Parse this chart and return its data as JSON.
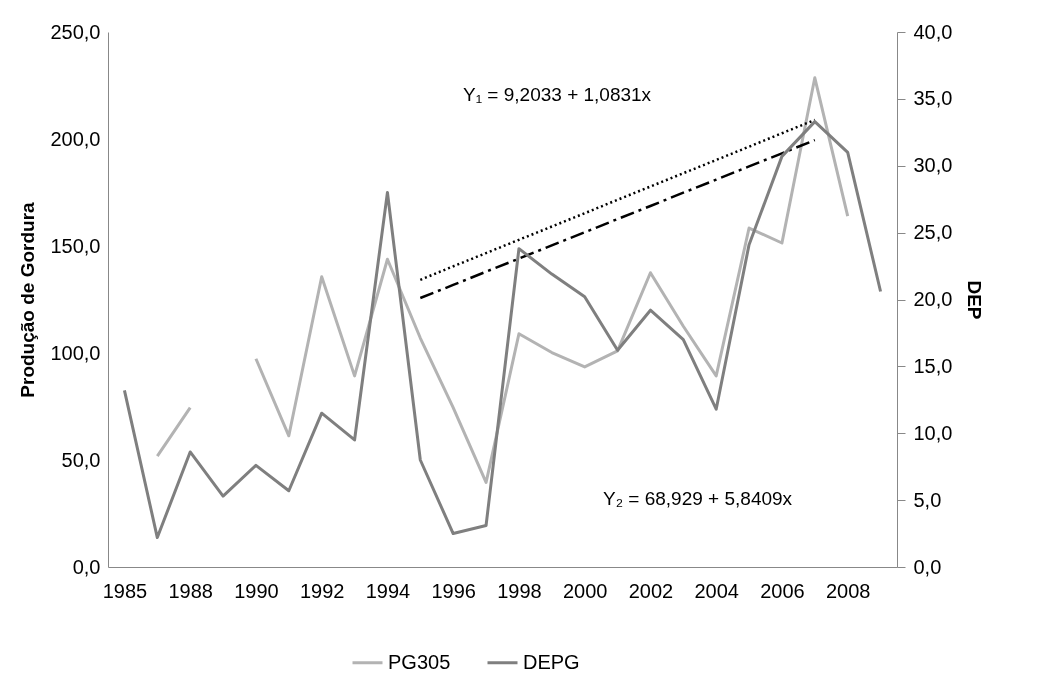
{
  "chart_data": {
    "type": "line",
    "ylabel": "Produção de Gordura",
    "y2label": "DEP",
    "categories": [
      "1985",
      null,
      "1988",
      null,
      "1990",
      null,
      "1992",
      null,
      "1994",
      null,
      "1996",
      null,
      "1998",
      null,
      "2000",
      null,
      "2002",
      null,
      "2004",
      null,
      "2006",
      null,
      "2008",
      null
    ],
    "ylim": [
      0,
      250
    ],
    "yticks": [
      {
        "value": 0,
        "label": "0,0"
      },
      {
        "value": 50,
        "label": "50,0"
      },
      {
        "value": 100,
        "label": "100,0"
      },
      {
        "value": 150,
        "label": "150,0"
      },
      {
        "value": 200,
        "label": "200,0"
      },
      {
        "value": 250,
        "label": "250,0"
      }
    ],
    "y2lim": [
      0,
      40
    ],
    "y2ticks": [
      {
        "value": 0,
        "label": "0,0"
      },
      {
        "value": 5,
        "label": "5,0"
      },
      {
        "value": 10,
        "label": "10,0"
      },
      {
        "value": 15,
        "label": "15,0"
      },
      {
        "value": 20,
        "label": "20,0"
      },
      {
        "value": 25,
        "label": "25,0"
      },
      {
        "value": 30,
        "label": "30,0"
      },
      {
        "value": 35,
        "label": "35,0"
      },
      {
        "value": 40,
        "label": "40,0"
      }
    ],
    "series": [
      {
        "name": "PG305",
        "color": "#b3b3b3",
        "values": [
          null,
          51.8,
          74.5,
          null,
          97.3,
          61.3,
          135.6,
          89.3,
          143.8,
          107,
          74.5,
          39.5,
          109,
          100.2,
          93.5,
          101,
          137.5,
          112.5,
          89.3,
          158.4,
          151.4,
          228.6,
          164,
          null
        ]
      },
      {
        "name": "DEPG",
        "color": "#7f7f7f",
        "axis": "y2",
        "values": [
          13.2,
          2.2,
          8.6,
          5.3,
          7.6,
          5.7,
          11.5,
          9.5,
          28.0,
          8.0,
          2.5,
          3.1,
          23.8,
          21.9,
          20.2,
          16.2,
          19.2,
          17.0,
          11.8,
          24.1,
          30.7,
          33.3,
          31.0,
          20.6
        ]
      },
      {
        "type": "line",
        "color": "#000000",
        "line_style": "dotted",
        "values": [
          null,
          null,
          null,
          null,
          null,
          null,
          null,
          null,
          null,
          134.2,
          140.5,
          146.7,
          152.9,
          159.1,
          165.3,
          171.6,
          177.8,
          184.0,
          190.2,
          196.4,
          202.7,
          208.9,
          null,
          null
        ]
      },
      {
        "type": "line",
        "color": "#000000",
        "line_style": "dashed",
        "values": [
          null,
          null,
          null,
          null,
          null,
          null,
          null,
          null,
          null,
          125.7,
          131.8,
          138.0,
          144.1,
          150.3,
          156.4,
          162.6,
          168.7,
          174.9,
          181.0,
          187.2,
          193.3,
          199.5,
          null,
          null
        ]
      }
    ],
    "annotations": [
      "Y₁ = 9,2033 + 1,0831x",
      "Y₂ = 68,929 + 5,8409x"
    ],
    "legend": "bottom",
    "grid": false
  }
}
